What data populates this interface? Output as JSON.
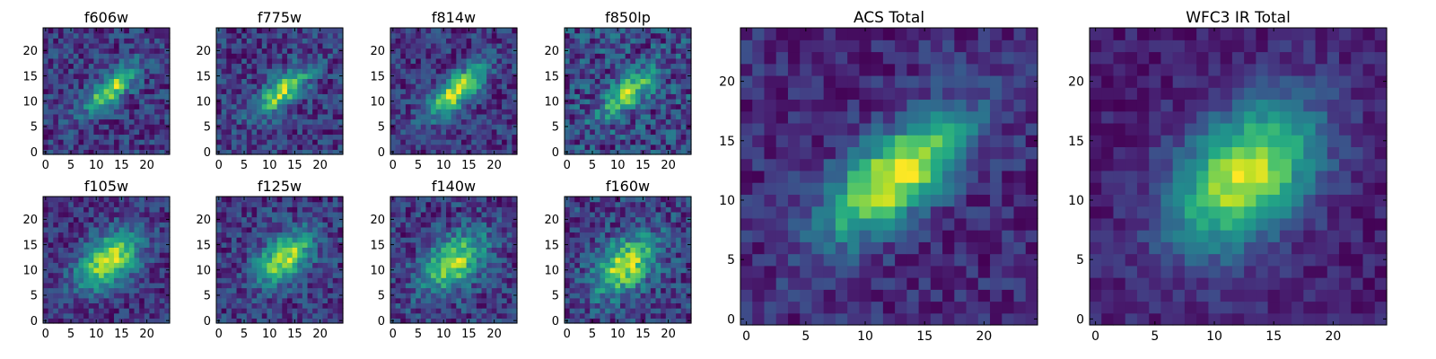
{
  "figure": {
    "colormap": "viridis"
  },
  "chart_data": [
    {
      "type": "heatmap",
      "title": "f606w",
      "xticks": [
        0,
        5,
        10,
        15,
        20
      ],
      "yticks": [
        0,
        5,
        10,
        15,
        20
      ],
      "xlim": [
        -0.5,
        24.5
      ],
      "ylim": [
        -0.5,
        24.5
      ],
      "grid": false,
      "description_values": {
        "peak_center": [
          13,
          12.5
        ],
        "peak_orientation_deg": 40,
        "peak_sigma": [
          4.5,
          1.6
        ],
        "background": 0.2,
        "noise": 0.2
      }
    },
    {
      "type": "heatmap",
      "title": "f775w",
      "xticks": [
        0,
        5,
        10,
        15,
        20
      ],
      "yticks": [
        0,
        5,
        10,
        15,
        20
      ],
      "xlim": [
        -0.5,
        24.5
      ],
      "ylim": [
        -0.5,
        24.5
      ],
      "grid": false,
      "description_values": {
        "peak_center": [
          12.5,
          12
        ],
        "peak_orientation_deg": 40,
        "peak_sigma": [
          4.5,
          1.8
        ],
        "background": 0.3,
        "noise": 0.18
      }
    },
    {
      "type": "heatmap",
      "title": "f814w",
      "xticks": [
        0,
        5,
        10,
        15,
        20
      ],
      "yticks": [
        0,
        5,
        10,
        15,
        20
      ],
      "xlim": [
        -0.5,
        24.5
      ],
      "ylim": [
        -0.5,
        24.5
      ],
      "grid": false,
      "description_values": {
        "peak_center": [
          12.5,
          12
        ],
        "peak_orientation_deg": 40,
        "peak_sigma": [
          4.8,
          1.9
        ],
        "background": 0.3,
        "noise": 0.15
      }
    },
    {
      "type": "heatmap",
      "title": "f850lp",
      "xticks": [
        0,
        5,
        10,
        15,
        20
      ],
      "yticks": [
        0,
        5,
        10,
        15,
        20
      ],
      "xlim": [
        -0.5,
        24.5
      ],
      "ylim": [
        -0.5,
        24.5
      ],
      "grid": false,
      "description_values": {
        "peak_center": [
          12,
          11.5
        ],
        "peak_orientation_deg": 40,
        "peak_sigma": [
          4.5,
          1.8
        ],
        "background": 0.4,
        "noise": 0.22
      }
    },
    {
      "type": "heatmap",
      "title": "f105w",
      "xticks": [
        0,
        5,
        10,
        15,
        20
      ],
      "yticks": [
        0,
        5,
        10,
        15,
        20
      ],
      "xlim": [
        -0.5,
        24.5
      ],
      "ylim": [
        -0.5,
        24.5
      ],
      "grid": false,
      "description_values": {
        "peak_center": [
          12.5,
          12
        ],
        "peak_orientation_deg": 40,
        "peak_sigma": [
          5,
          3
        ],
        "background": 0.5,
        "noise": 0.1
      }
    },
    {
      "type": "heatmap",
      "title": "f125w",
      "xticks": [
        0,
        5,
        10,
        15,
        20
      ],
      "yticks": [
        0,
        5,
        10,
        15,
        20
      ],
      "xlim": [
        -0.5,
        24.5
      ],
      "ylim": [
        -0.5,
        24.5
      ],
      "grid": false,
      "description_values": {
        "peak_center": [
          13,
          12.5
        ],
        "peak_orientation_deg": 40,
        "peak_sigma": [
          4.5,
          2.5
        ],
        "background": 0.5,
        "noise": 0.12
      }
    },
    {
      "type": "heatmap",
      "title": "f140w",
      "xticks": [
        0,
        5,
        10,
        15,
        20
      ],
      "yticks": [
        0,
        5,
        10,
        15,
        20
      ],
      "xlim": [
        -0.5,
        24.5
      ],
      "ylim": [
        -0.5,
        24.5
      ],
      "grid": false,
      "description_values": {
        "peak_center": [
          12,
          11.5
        ],
        "peak_orientation_deg": 40,
        "peak_sigma": [
          5,
          3
        ],
        "background": 0.55,
        "noise": 0.12
      }
    },
    {
      "type": "heatmap",
      "title": "f160w",
      "xticks": [
        0,
        5,
        10,
        15,
        20
      ],
      "yticks": [
        0,
        5,
        10,
        15,
        20
      ],
      "xlim": [
        -0.5,
        24.5
      ],
      "ylim": [
        -0.5,
        24.5
      ],
      "grid": false,
      "description_values": {
        "peak_center": [
          11.5,
          11
        ],
        "peak_orientation_deg": 40,
        "peak_sigma": [
          5,
          3
        ],
        "background": 0.55,
        "noise": 0.12
      }
    },
    {
      "type": "heatmap",
      "title": "ACS Total",
      "xticks": [
        0,
        5,
        10,
        15,
        20
      ],
      "yticks": [
        0,
        5,
        10,
        15,
        20
      ],
      "xlim": [
        -0.5,
        24.5
      ],
      "ylim": [
        -0.5,
        24.5
      ],
      "grid": false,
      "description_values": {
        "peak_center": [
          12.5,
          12
        ],
        "peak_orientation_deg": 40,
        "peak_sigma": [
          5,
          2.2
        ],
        "background": 0.3,
        "noise": 0.1
      }
    },
    {
      "type": "heatmap",
      "title": "WFC3 IR Total",
      "xticks": [
        0,
        5,
        10,
        15,
        20
      ],
      "yticks": [
        0,
        5,
        10,
        15,
        20
      ],
      "xlim": [
        -0.5,
        24.5
      ],
      "ylim": [
        -0.5,
        24.5
      ],
      "grid": false,
      "description_values": {
        "peak_center": [
          12.5,
          12
        ],
        "peak_orientation_deg": 45,
        "peak_sigma": [
          5,
          3.2
        ],
        "background": 0.45,
        "noise": 0.06
      }
    }
  ]
}
